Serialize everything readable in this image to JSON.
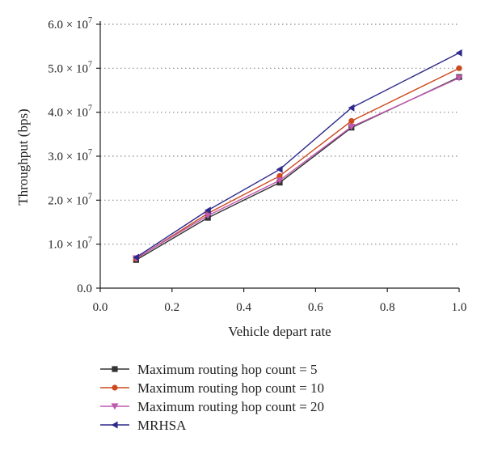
{
  "chart_data": {
    "type": "line",
    "title": "",
    "xlabel": "Vehicle depart rate",
    "ylabel": "Throughput (bps)",
    "xlim": [
      0.0,
      1.0
    ],
    "ylim": [
      0,
      60000000
    ],
    "x_ticks": [
      0.0,
      0.2,
      0.4,
      0.6,
      0.8,
      1.0
    ],
    "x_tick_labels": [
      "0.0",
      "0.2",
      "0.4",
      "0.6",
      "0.8",
      "1.0"
    ],
    "y_ticks": [
      0,
      10000000,
      20000000,
      30000000,
      40000000,
      50000000,
      60000000
    ],
    "y_tick_mantissas": [
      "0.0",
      "1.0",
      "2.0",
      "3.0",
      "4.0",
      "5.0",
      "6.0"
    ],
    "y_tick_times": "× 10",
    "y_tick_exponent": "7",
    "grid": "horizontal dotted",
    "legend_placement": "below",
    "x": [
      0.1,
      0.3,
      0.5,
      0.7,
      1.0
    ],
    "series": [
      {
        "name": "Maximum routing hop count = 5",
        "values": [
          6400000,
          16000000,
          24000000,
          36500000,
          48000000
        ],
        "color": "#333333",
        "marker": "square"
      },
      {
        "name": "Maximum routing hop count = 10",
        "values": [
          6700000,
          17000000,
          25500000,
          38000000,
          50000000
        ],
        "color": "#cc4a1e",
        "marker": "circle"
      },
      {
        "name": "Maximum routing hop count = 20",
        "values": [
          6800000,
          16500000,
          24500000,
          36700000,
          47800000
        ],
        "color": "#c058b0",
        "marker": "triangle-down"
      },
      {
        "name": "MRHSA",
        "values": [
          7000000,
          17700000,
          27000000,
          41000000,
          53500000
        ],
        "color": "#2e2a8c",
        "marker": "triangle-left"
      }
    ]
  }
}
